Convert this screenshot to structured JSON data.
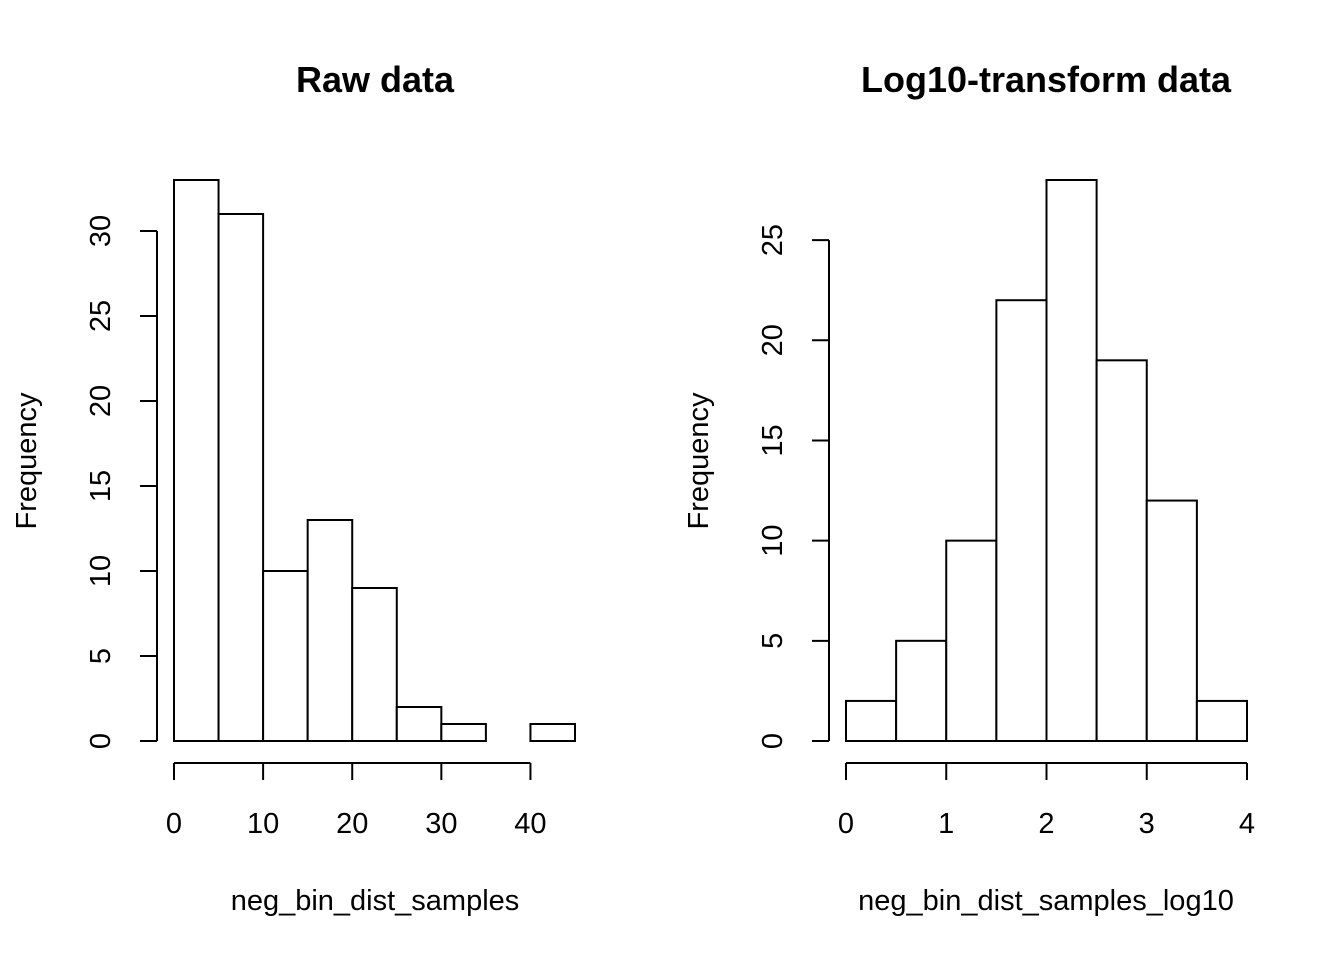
{
  "chart_data": [
    {
      "type": "bar",
      "title": "Raw data",
      "xlabel": "neg_bin_dist_samples",
      "ylabel": "Frequency",
      "bin_edges": [
        0,
        5,
        10,
        15,
        20,
        25,
        30,
        35,
        40,
        45
      ],
      "values": [
        33,
        31,
        10,
        13,
        9,
        2,
        1,
        0,
        1
      ],
      "xticks": [
        0,
        10,
        20,
        30,
        40
      ],
      "yticks": [
        0,
        5,
        10,
        15,
        20,
        25,
        30
      ],
      "xlim": [
        0,
        45
      ],
      "ylim": [
        0,
        33
      ],
      "grid": false,
      "legend": "none"
    },
    {
      "type": "bar",
      "title": "Log10-transform data",
      "xlabel": "neg_bin_dist_samples_log10",
      "ylabel": "Frequency",
      "bin_edges": [
        0,
        0.5,
        1,
        1.5,
        2,
        2.5,
        3,
        3.5,
        4
      ],
      "values": [
        2,
        5,
        10,
        22,
        28,
        19,
        12,
        2
      ],
      "xticks": [
        0,
        1,
        2,
        3,
        4
      ],
      "yticks": [
        0,
        5,
        10,
        15,
        20,
        25
      ],
      "xlim": [
        0,
        4
      ],
      "ylim": [
        0,
        28
      ],
      "grid": false,
      "legend": "none"
    }
  ]
}
